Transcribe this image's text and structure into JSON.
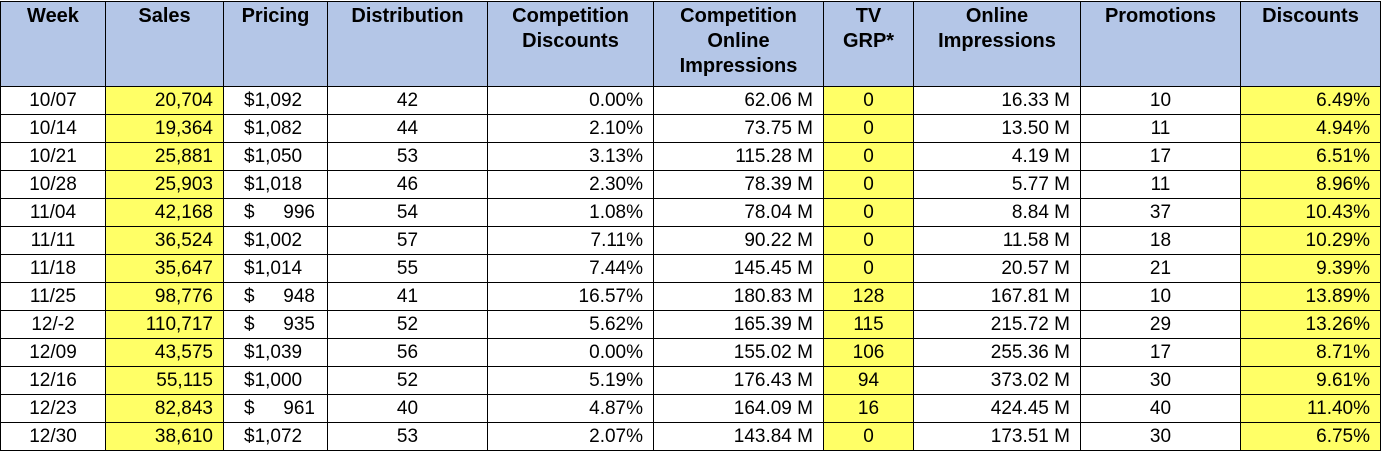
{
  "table": {
    "header": [
      "Week",
      "Sales",
      "Pricing",
      "Distribution",
      "Competition\nDiscounts",
      "Competition\nOnline\nImpressions",
      "TV\nGRP*",
      "Online\nImpressions",
      "Promotions",
      "Discounts"
    ],
    "rows": [
      [
        "10/07",
        "20,704",
        "$1,092",
        "42",
        "0.00%",
        "62.06 M",
        "0",
        "16.33 M",
        "10",
        "6.49%"
      ],
      [
        "10/14",
        "19,364",
        "$1,082",
        "44",
        "2.10%",
        "73.75 M",
        "0",
        "13.50 M",
        "11",
        "4.94%"
      ],
      [
        "10/21",
        "25,881",
        "$1,050",
        "53",
        "3.13%",
        "115.28 M",
        "0",
        "4.19 M",
        "17",
        "6.51%"
      ],
      [
        "10/28",
        "25,903",
        "$1,018",
        "46",
        "2.30%",
        "78.39 M",
        "0",
        "5.77 M",
        "11",
        "8.96%"
      ],
      [
        "11/04",
        "42,168",
        "$ 996",
        "54",
        "1.08%",
        "78.04 M",
        "0",
        "8.84 M",
        "37",
        "10.43%"
      ],
      [
        "11/11",
        "36,524",
        "$1,002",
        "57",
        "7.11%",
        "90.22 M",
        "0",
        "11.58 M",
        "18",
        "10.29%"
      ],
      [
        "11/18",
        "35,647",
        "$1,014",
        "55",
        "7.44%",
        "145.45 M",
        "0",
        "20.57 M",
        "21",
        "9.39%"
      ],
      [
        "11/25",
        "98,776",
        "$ 948",
        "41",
        "16.57%",
        "180.83 M",
        "128",
        "167.81 M",
        "10",
        "13.89%"
      ],
      [
        "12/-2",
        "110,717",
        "$ 935",
        "52",
        "5.62%",
        "165.39 M",
        "115",
        "215.72 M",
        "29",
        "13.26%"
      ],
      [
        "12/09",
        "43,575",
        "$1,039",
        "56",
        "0.00%",
        "155.02 M",
        "106",
        "255.36 M",
        "17",
        "8.71%"
      ],
      [
        "12/16",
        "55,115",
        "$1,000",
        "52",
        "5.19%",
        "176.43 M",
        "94",
        "373.02 M",
        "30",
        "9.61%"
      ],
      [
        "12/23",
        "82,843",
        "$ 961",
        "40",
        "4.87%",
        "164.09 M",
        "16",
        "424.45 M",
        "40",
        "11.40%"
      ],
      [
        "12/30",
        "38,610",
        "$1,072",
        "53",
        "2.07%",
        "143.84 M",
        "0",
        "173.51 M",
        "30",
        "6.75%"
      ]
    ]
  }
}
